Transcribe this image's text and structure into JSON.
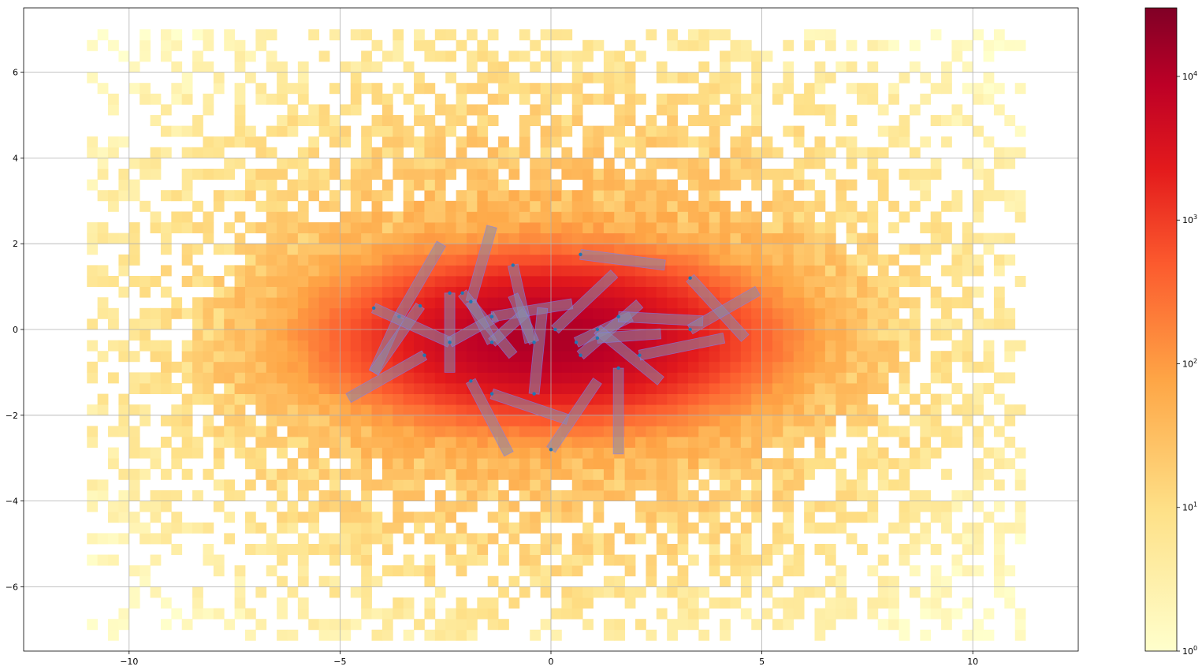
{
  "chart_data": {
    "type": "heatmap",
    "title": "",
    "xlabel": "",
    "ylabel": "",
    "xlim": [
      -12.5,
      12.5
    ],
    "ylim": [
      -7.5,
      7.5
    ],
    "x_ticks": [
      -10,
      -5,
      0,
      5,
      10
    ],
    "y_ticks": [
      -6,
      -4,
      -2,
      0,
      2,
      4,
      6
    ],
    "x_tick_labels": [
      "−10",
      "−5",
      "0",
      "5",
      "10"
    ],
    "y_tick_labels": [
      "−6",
      "−4",
      "−2",
      "0",
      "2",
      "4",
      "6"
    ],
    "grid": true,
    "colormap": "YlOrRd",
    "color_scale": "log",
    "colorbar": {
      "range": [
        1,
        30000
      ],
      "ticks": [
        1,
        10,
        100,
        1000,
        10000
      ],
      "tick_labels": [
        {
          "base": "10",
          "exp": "0"
        },
        {
          "base": "10",
          "exp": "1"
        },
        {
          "base": "10",
          "exp": "2"
        },
        {
          "base": "10",
          "exp": "3"
        },
        {
          "base": "10",
          "exp": "4"
        }
      ]
    },
    "density_model": {
      "bin_width": 0.25,
      "x_extent": [
        -11.0,
        11.25
      ],
      "y_extent": [
        -7.25,
        7.0
      ],
      "core_center": [
        0.0,
        -0.2
      ],
      "core_sigma": [
        1.9,
        0.75
      ],
      "core_peak_count": 12000,
      "halo_peak_count": 60,
      "halo_sigma": [
        5.5,
        3.6
      ]
    },
    "segment_color": "#8a8aa8",
    "segment_edge_color": "#7b7bff",
    "point_color": "#1f77b4",
    "segments": [
      {
        "x1": -3.6,
        "y1": 0.3,
        "x2": -2.6,
        "y2": 2.0
      },
      {
        "x1": -3.6,
        "y1": 0.3,
        "x2": -4.2,
        "y2": -1.0
      },
      {
        "x1": -3.1,
        "y1": 0.55,
        "x2": -4.2,
        "y2": -1.0
      },
      {
        "x1": -4.2,
        "y1": 0.5,
        "x2": -2.4,
        "y2": -0.3
      },
      {
        "x1": -3.0,
        "y1": -0.6,
        "x2": -4.8,
        "y2": -1.6
      },
      {
        "x1": -2.4,
        "y1": 0.85,
        "x2": -2.4,
        "y2": -1.0
      },
      {
        "x1": -2.4,
        "y1": -0.3,
        "x2": -1.3,
        "y2": 0.3
      },
      {
        "x1": -1.9,
        "y1": 0.65,
        "x2": -1.4,
        "y2": 2.4
      },
      {
        "x1": -2.1,
        "y1": 0.85,
        "x2": -0.9,
        "y2": -0.6
      },
      {
        "x1": -1.9,
        "y1": 0.65,
        "x2": -1.4,
        "y2": -0.3
      },
      {
        "x1": -1.9,
        "y1": -1.2,
        "x2": -1.0,
        "y2": -2.9
      },
      {
        "x1": -1.4,
        "y1": -1.5,
        "x2": 0.4,
        "y2": -2.1
      },
      {
        "x1": -1.4,
        "y1": 0.3,
        "x2": 0.5,
        "y2": 0.6
      },
      {
        "x1": -1.4,
        "y1": -0.3,
        "x2": -0.6,
        "y2": 0.4
      },
      {
        "x1": -0.9,
        "y1": 1.5,
        "x2": -0.5,
        "y2": -0.3
      },
      {
        "x1": -0.4,
        "y1": -1.5,
        "x2": -0.2,
        "y2": 0.5
      },
      {
        "x1": -0.4,
        "y1": -0.3,
        "x2": -0.9,
        "y2": 0.8
      },
      {
        "x1": 0.0,
        "y1": -2.8,
        "x2": 1.1,
        "y2": -1.2
      },
      {
        "x1": 0.1,
        "y1": 0.0,
        "x2": 1.5,
        "y2": 1.3
      },
      {
        "x1": 0.6,
        "y1": -0.3,
        "x2": 1.9,
        "y2": 0.3
      },
      {
        "x1": 0.7,
        "y1": 1.75,
        "x2": 2.7,
        "y2": 1.5
      },
      {
        "x1": 0.7,
        "y1": -0.6,
        "x2": 2.1,
        "y2": 0.6
      },
      {
        "x1": 1.1,
        "y1": 0.0,
        "x2": 2.6,
        "y2": -1.2
      },
      {
        "x1": 1.1,
        "y1": -0.2,
        "x2": 2.6,
        "y2": -0.1
      },
      {
        "x1": 1.6,
        "y1": -0.9,
        "x2": 1.6,
        "y2": -2.9
      },
      {
        "x1": 1.6,
        "y1": 0.3,
        "x2": 3.6,
        "y2": 0.2
      },
      {
        "x1": 2.1,
        "y1": -0.6,
        "x2": 4.1,
        "y2": -0.2
      },
      {
        "x1": 3.3,
        "y1": 1.2,
        "x2": 4.6,
        "y2": -0.2
      },
      {
        "x1": 3.3,
        "y1": 0.0,
        "x2": 4.9,
        "y2": 0.9
      }
    ]
  }
}
